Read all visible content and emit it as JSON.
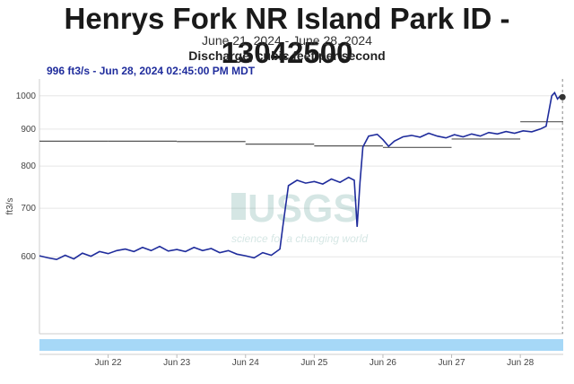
{
  "header": {
    "title": "Henrys Fork NR Island Park ID - 13042500",
    "date_range": "June 21, 2024 - June 28, 2024",
    "parameter": "Discharge, cubic feet per second",
    "readout": "996 ft3/s - Jun 28, 2024 02:45:00 PM MDT"
  },
  "watermark": {
    "logo_text": "USGS",
    "tagline": "science for a changing world"
  },
  "colors": {
    "series": "#1f2c9c",
    "median": "#555555",
    "grid": "#e6e6e6",
    "nav_band": "#a6d8f7"
  },
  "chart_data": {
    "type": "line",
    "title": "Henrys Fork NR Island Park ID - 13042500",
    "xlabel": "",
    "ylabel": "ft3/s",
    "ylim": [
      470,
      1055
    ],
    "xlim": [
      "2024-06-21T00:00",
      "2024-06-28T15:00"
    ],
    "y_scale": "log",
    "grid": true,
    "yticks": [
      600,
      700,
      800,
      900,
      1000
    ],
    "ytick_labels": [
      "600",
      "700",
      "800",
      "900",
      "1000"
    ],
    "xticks": [
      "2024-06-22T00:00",
      "2024-06-23T00:00",
      "2024-06-24T00:00",
      "2024-06-25T00:00",
      "2024-06-26T00:00",
      "2024-06-27T00:00",
      "2024-06-28T00:00"
    ],
    "xtick_labels": [
      "Jun 22",
      "Jun 23",
      "Jun 24",
      "Jun 25",
      "Jun 26",
      "Jun 27",
      "Jun 28"
    ],
    "series": [
      {
        "kind": "discharge",
        "points": [
          [
            "2024-06-21T00:00",
            602
          ],
          [
            "2024-06-21T03:00",
            598
          ],
          [
            "2024-06-21T06:00",
            595
          ],
          [
            "2024-06-21T09:00",
            603
          ],
          [
            "2024-06-21T12:00",
            596
          ],
          [
            "2024-06-21T15:00",
            607
          ],
          [
            "2024-06-21T18:00",
            601
          ],
          [
            "2024-06-21T21:00",
            610
          ],
          [
            "2024-06-22T00:00",
            606
          ],
          [
            "2024-06-22T03:00",
            612
          ],
          [
            "2024-06-22T06:00",
            615
          ],
          [
            "2024-06-22T09:00",
            610
          ],
          [
            "2024-06-22T12:00",
            618
          ],
          [
            "2024-06-22T15:00",
            612
          ],
          [
            "2024-06-22T18:00",
            620
          ],
          [
            "2024-06-22T21:00",
            611
          ],
          [
            "2024-06-23T00:00",
            614
          ],
          [
            "2024-06-23T03:00",
            610
          ],
          [
            "2024-06-23T06:00",
            618
          ],
          [
            "2024-06-23T09:00",
            612
          ],
          [
            "2024-06-23T12:00",
            616
          ],
          [
            "2024-06-23T15:00",
            608
          ],
          [
            "2024-06-23T18:00",
            612
          ],
          [
            "2024-06-23T21:00",
            605
          ],
          [
            "2024-06-24T00:00",
            602
          ],
          [
            "2024-06-24T03:00",
            598
          ],
          [
            "2024-06-24T06:00",
            608
          ],
          [
            "2024-06-24T09:00",
            603
          ],
          [
            "2024-06-24T12:00",
            615
          ],
          [
            "2024-06-24T13:00",
            660
          ],
          [
            "2024-06-24T15:00",
            752
          ],
          [
            "2024-06-24T18:00",
            765
          ],
          [
            "2024-06-24T21:00",
            758
          ],
          [
            "2024-06-25T00:00",
            762
          ],
          [
            "2024-06-25T03:00",
            756
          ],
          [
            "2024-06-25T06:00",
            768
          ],
          [
            "2024-06-25T09:00",
            760
          ],
          [
            "2024-06-25T12:00",
            772
          ],
          [
            "2024-06-25T14:00",
            765
          ],
          [
            "2024-06-25T15:00",
            660
          ],
          [
            "2024-06-25T16:00",
            760
          ],
          [
            "2024-06-25T17:00",
            850
          ],
          [
            "2024-06-25T19:00",
            880
          ],
          [
            "2024-06-25T22:00",
            885
          ],
          [
            "2024-06-26T00:00",
            870
          ],
          [
            "2024-06-26T02:00",
            852
          ],
          [
            "2024-06-26T04:00",
            866
          ],
          [
            "2024-06-26T07:00",
            878
          ],
          [
            "2024-06-26T10:00",
            882
          ],
          [
            "2024-06-26T13:00",
            877
          ],
          [
            "2024-06-26T16:00",
            888
          ],
          [
            "2024-06-26T19:00",
            880
          ],
          [
            "2024-06-26T22:00",
            875
          ],
          [
            "2024-06-27T01:00",
            884
          ],
          [
            "2024-06-27T04:00",
            878
          ],
          [
            "2024-06-27T07:00",
            886
          ],
          [
            "2024-06-27T10:00",
            880
          ],
          [
            "2024-06-27T13:00",
            890
          ],
          [
            "2024-06-27T16:00",
            886
          ],
          [
            "2024-06-27T19:00",
            893
          ],
          [
            "2024-06-27T22:00",
            888
          ],
          [
            "2024-06-28T01:00",
            895
          ],
          [
            "2024-06-28T04:00",
            892
          ],
          [
            "2024-06-28T07:00",
            900
          ],
          [
            "2024-06-28T09:00",
            908
          ],
          [
            "2024-06-28T11:00",
            1000
          ],
          [
            "2024-06-28T12:00",
            1010
          ],
          [
            "2024-06-28T13:00",
            990
          ],
          [
            "2024-06-28T14:00",
            1000
          ],
          [
            "2024-06-28T14:45",
            996
          ]
        ]
      },
      {
        "kind": "daily-median",
        "segments": [
          {
            "start": "2024-06-21T00:00",
            "end": "2024-06-21T23:59",
            "value": 866
          },
          {
            "start": "2024-06-22T00:00",
            "end": "2024-06-22T23:59",
            "value": 866
          },
          {
            "start": "2024-06-23T00:00",
            "end": "2024-06-23T23:59",
            "value": 865
          },
          {
            "start": "2024-06-24T00:00",
            "end": "2024-06-24T23:59",
            "value": 858
          },
          {
            "start": "2024-06-25T00:00",
            "end": "2024-06-25T23:59",
            "value": 853
          },
          {
            "start": "2024-06-26T00:00",
            "end": "2024-06-26T23:59",
            "value": 849
          },
          {
            "start": "2024-06-27T00:00",
            "end": "2024-06-27T23:59",
            "value": 872
          },
          {
            "start": "2024-06-28T00:00",
            "end": "2024-06-28T15:00",
            "value": 921
          }
        ]
      }
    ],
    "marker": {
      "x": "2024-06-28T14:45",
      "y": 996
    }
  }
}
